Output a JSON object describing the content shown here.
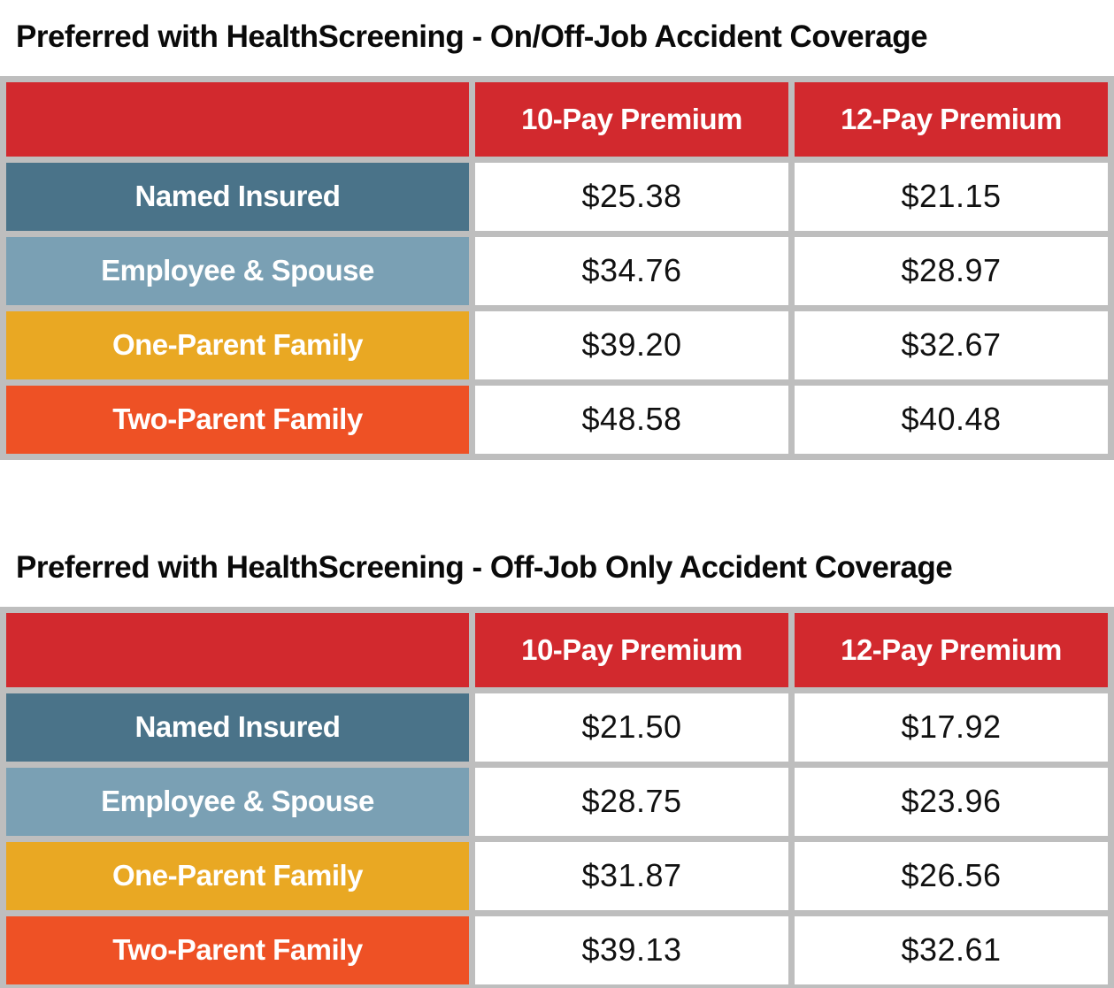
{
  "colors": {
    "header_red": "#D2292E",
    "row_named_insured": "#4A7389",
    "row_employee_spouse": "#7AA0B4",
    "row_one_parent": "#E9A823",
    "row_two_parent": "#EE5125",
    "table_border_gray": "#BEBEBE"
  },
  "tables": [
    {
      "title": "Preferred with HealthScreening - On/Off-Job Accident Coverage",
      "columns": [
        "10-Pay Premium",
        "12-Pay Premium"
      ],
      "rows": [
        {
          "label": "Named Insured",
          "values": [
            "$25.38",
            "$21.15"
          ]
        },
        {
          "label": "Employee & Spouse",
          "values": [
            "$34.76",
            "$28.97"
          ]
        },
        {
          "label": "One-Parent Family",
          "values": [
            "$39.20",
            "$32.67"
          ]
        },
        {
          "label": "Two-Parent Family",
          "values": [
            "$48.58",
            "$40.48"
          ]
        }
      ]
    },
    {
      "title": "Preferred with HealthScreening - Off-Job Only Accident Coverage",
      "columns": [
        "10-Pay Premium",
        "12-Pay Premium"
      ],
      "rows": [
        {
          "label": "Named Insured",
          "values": [
            "$21.50",
            "$17.92"
          ]
        },
        {
          "label": "Employee & Spouse",
          "values": [
            "$28.75",
            "$23.96"
          ]
        },
        {
          "label": "One-Parent Family",
          "values": [
            "$31.87",
            "$26.56"
          ]
        },
        {
          "label": "Two-Parent Family",
          "values": [
            "$39.13",
            "$32.61"
          ]
        }
      ]
    }
  ]
}
